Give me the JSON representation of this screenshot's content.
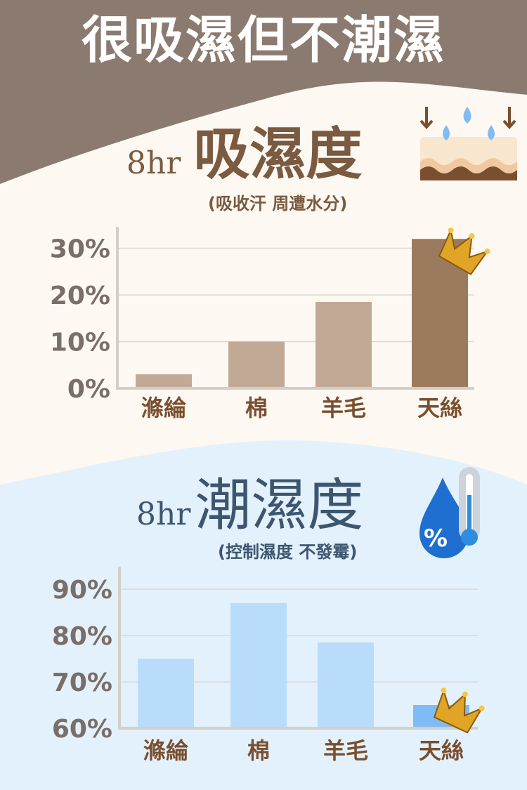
{
  "title": "很吸濕但不潮濕",
  "colors": {
    "header": "#8b7a6f",
    "cream": "#fdf9f2",
    "blue_bg": "#e3f1fc",
    "brown_text": "#7a5a40",
    "blue_text": "#3d5670"
  },
  "section1": {
    "hours": "8hr",
    "heading": "吸濕度",
    "subtitle": "(吸收汗 周遭水分)",
    "icon": "skin-droplets-icon"
  },
  "section2": {
    "hours": "8hr",
    "heading": "潮濕度",
    "subtitle": "(控制濕度 不發霉)",
    "icon": "droplet-thermometer-icon",
    "icon_text": "%"
  },
  "chart_data": [
    {
      "type": "bar",
      "categories": [
        "滌綸",
        "棉",
        "羊毛",
        "天絲"
      ],
      "values": [
        3,
        10,
        18.5,
        32
      ],
      "ylim": [
        0,
        30
      ],
      "yticks": [
        "0%",
        "10%",
        "20%",
        "30%"
      ],
      "ytick_values": [
        0,
        10,
        20,
        30
      ],
      "grid": true,
      "highlight": "天絲",
      "bar_color": "#c2a996",
      "highlight_color": "#9c7a5e"
    },
    {
      "type": "bar",
      "categories": [
        "滌綸",
        "棉",
        "羊毛",
        "天絲"
      ],
      "values": [
        75,
        87,
        78.5,
        65
      ],
      "ylim": [
        60,
        90
      ],
      "yticks": [
        "60%",
        "70%",
        "80%",
        "90%"
      ],
      "ytick_values": [
        60,
        70,
        80,
        90
      ],
      "grid": true,
      "highlight": "天絲",
      "bar_color": "#b9dcfb",
      "highlight_color": "#7fbcf5"
    }
  ]
}
